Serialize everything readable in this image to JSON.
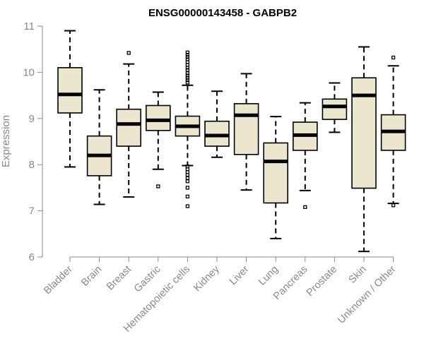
{
  "chart_data": {
    "type": "boxplot",
    "title": "ENSG00000143458 - GABPB2",
    "xlabel": "",
    "ylabel": "Expression",
    "ylim": [
      6,
      11
    ],
    "yticks": [
      6,
      7,
      8,
      9,
      10,
      11
    ],
    "categories": [
      "Bladder",
      "Brain",
      "Breast",
      "Gastric",
      "Hematopoietic cells",
      "Kidney",
      "Liver",
      "Lung",
      "Pancreas",
      "Prostate",
      "Skin",
      "Unknown / Other"
    ],
    "boxes": [
      {
        "min": 7.95,
        "q1": 9.12,
        "median": 9.52,
        "q3": 10.1,
        "max": 10.9,
        "outliers": []
      },
      {
        "min": 7.14,
        "q1": 7.76,
        "median": 8.2,
        "q3": 8.62,
        "max": 9.62,
        "outliers": []
      },
      {
        "min": 7.3,
        "q1": 8.4,
        "median": 8.88,
        "q3": 9.2,
        "max": 10.18,
        "outliers": [
          10.42
        ]
      },
      {
        "min": 7.9,
        "q1": 8.74,
        "median": 8.96,
        "q3": 9.28,
        "max": 9.57,
        "outliers": [
          7.53
        ]
      },
      {
        "min": 7.98,
        "q1": 8.62,
        "median": 8.83,
        "q3": 9.05,
        "max": 9.72,
        "outliers": [
          10.43,
          10.38,
          10.33,
          10.28,
          10.22,
          10.16,
          10.1,
          10.05,
          9.98,
          9.93,
          9.88,
          9.83,
          9.78,
          7.96,
          7.9,
          7.84,
          7.78,
          7.71,
          7.64,
          7.5,
          7.31,
          7.1
        ]
      },
      {
        "min": 8.16,
        "q1": 8.4,
        "median": 8.63,
        "q3": 8.94,
        "max": 9.59,
        "outliers": []
      },
      {
        "min": 7.45,
        "q1": 8.22,
        "median": 9.07,
        "q3": 9.32,
        "max": 9.97,
        "outliers": []
      },
      {
        "min": 6.4,
        "q1": 7.17,
        "median": 8.07,
        "q3": 8.47,
        "max": 9.04,
        "outliers": []
      },
      {
        "min": 7.44,
        "q1": 8.31,
        "median": 8.64,
        "q3": 8.92,
        "max": 9.34,
        "outliers": [
          7.08
        ]
      },
      {
        "min": 8.7,
        "q1": 8.98,
        "median": 9.26,
        "q3": 9.42,
        "max": 9.77,
        "outliers": []
      },
      {
        "min": 6.12,
        "q1": 7.49,
        "median": 9.5,
        "q3": 9.88,
        "max": 10.55,
        "outliers": []
      },
      {
        "min": 7.16,
        "q1": 8.31,
        "median": 8.72,
        "q3": 9.08,
        "max": 10.14,
        "outliers": [
          10.32,
          7.12
        ]
      }
    ],
    "box_fill": "#ede6cf",
    "stroke": "#000000",
    "axis_color": "#888888",
    "grid": false
  }
}
